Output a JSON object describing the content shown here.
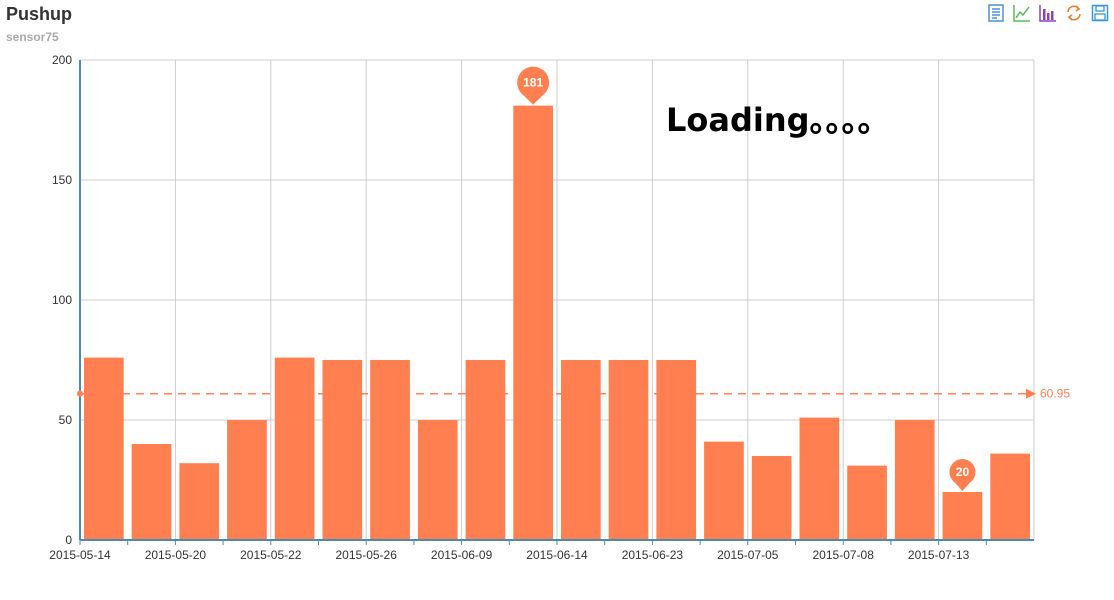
{
  "header": {
    "title": "Pushup",
    "subtitle": "sensor75"
  },
  "toolbox": [
    {
      "name": "data-view-icon",
      "color": "#4a90d9"
    },
    {
      "name": "line-chart-icon",
      "color": "#5cb85c"
    },
    {
      "name": "bar-chart-icon",
      "color": "#8e44ad"
    },
    {
      "name": "restore-icon",
      "color": "#e67e22"
    },
    {
      "name": "save-image-icon",
      "color": "#3498db"
    }
  ],
  "overlay": {
    "loading_text": "Loading。。。。"
  },
  "colors": {
    "bar": "#ff7f50",
    "axis": "#4a8bb5",
    "grid": "#cccccc"
  },
  "chart_data": {
    "type": "bar",
    "title": "Pushup",
    "subtitle": "sensor75",
    "categories": [
      "2015-05-14",
      "",
      "2015-05-20",
      "",
      "2015-05-22",
      "",
      "2015-05-26",
      "",
      "2015-06-09",
      "",
      "2015-06-14",
      "",
      "2015-06-23",
      "",
      "2015-07-05",
      "",
      "2015-07-08",
      "",
      "2015-07-13",
      ""
    ],
    "xtick_labels": [
      "2015-05-14",
      "2015-05-20",
      "2015-05-22",
      "2015-05-26",
      "2015-06-09",
      "2015-06-14",
      "2015-06-23",
      "2015-07-05",
      "2015-07-08",
      "2015-07-13"
    ],
    "values": [
      76,
      40,
      32,
      50,
      76,
      75,
      75,
      50,
      75,
      181,
      75,
      75,
      75,
      41,
      35,
      51,
      31,
      50,
      20,
      36
    ],
    "ylim": [
      0,
      200
    ],
    "yticks": [
      0,
      50,
      100,
      150,
      200
    ],
    "mark_points": [
      {
        "label": "181",
        "value": 181,
        "index": 9
      },
      {
        "label": "20",
        "value": 20,
        "index": 18
      }
    ],
    "mark_line": {
      "label": "60.95",
      "value": 60.95
    },
    "grid": true
  }
}
